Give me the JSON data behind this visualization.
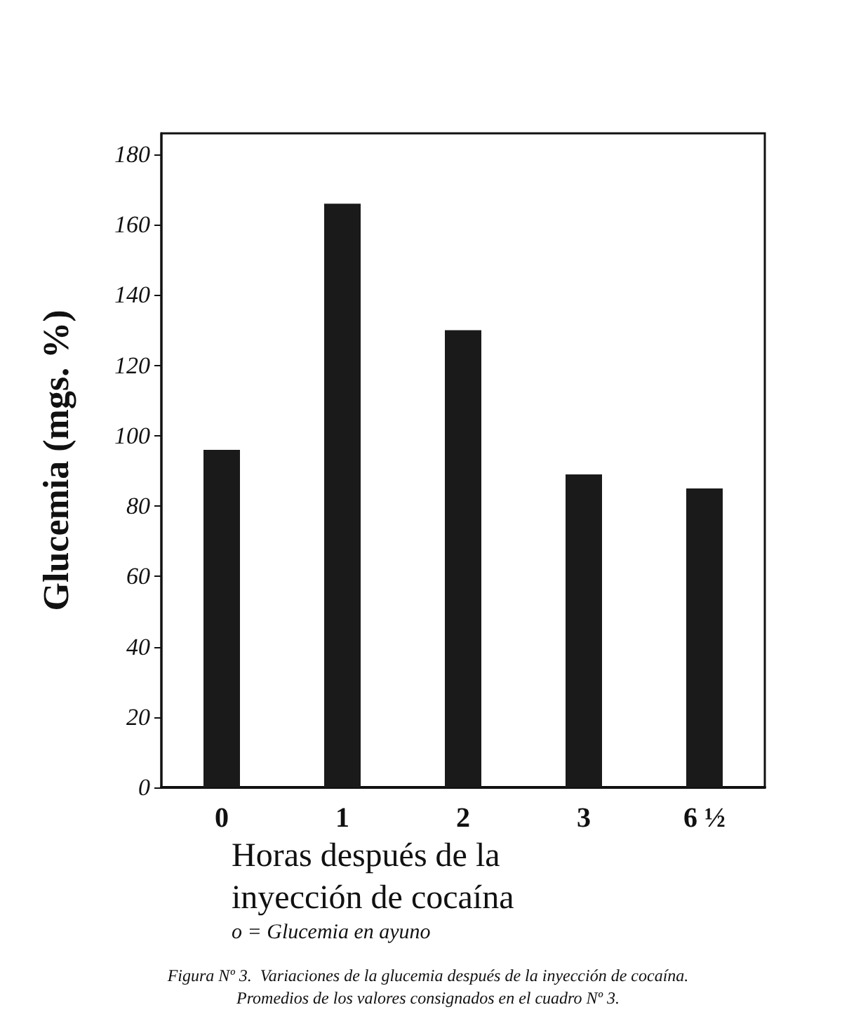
{
  "chart_data": {
    "type": "bar",
    "categories": [
      "0",
      "1",
      "2",
      "3",
      "6 ½"
    ],
    "values": [
      96,
      166,
      130,
      89,
      85
    ],
    "color": "#1a1a1a",
    "ylim": [
      0,
      186
    ],
    "yticks": [
      0,
      20,
      40,
      60,
      80,
      100,
      120,
      140,
      160,
      180
    ],
    "ylabel": "Glucemia (mgs. %)",
    "xlabel": "Horas después de la\ninyección de cocaína",
    "grid": false,
    "annotations": [
      "o = Glucemia en ayuno",
      "Figura Nº 3.  Variaciones de la glucemia después de la inyección de cocaína.\nPromedios de los valores consignados en el cuadro Nº 3."
    ]
  }
}
